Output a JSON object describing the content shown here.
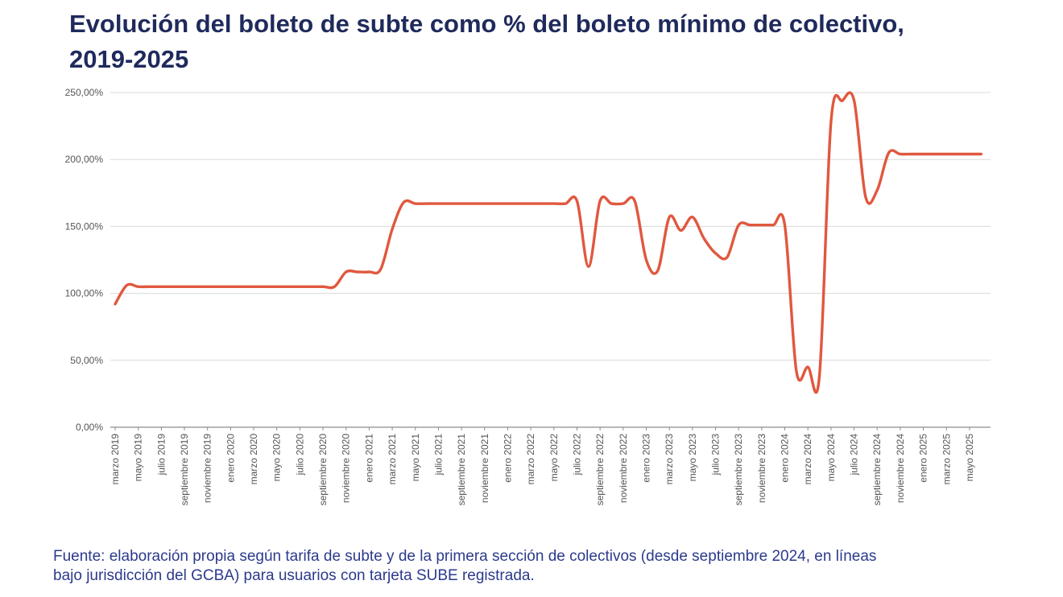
{
  "header": {
    "title_line1": "Evolución del boleto de subte como % del boleto mínimo de colectivo,",
    "title_line2": "2019-2025"
  },
  "footer": {
    "source_line1": "Fuente: elaboración propia según tarifa de subte y de la primera sección de colectivos (desde septiembre 2024, en líneas",
    "source_line2": "bajo jurisdicción del GCBA) para usuarios con tarjeta SUBE registrada."
  },
  "colors": {
    "line": "#e0583f",
    "grid": "#d9d9d9",
    "axis": "#8c8c8c",
    "title": "#1f2a5c",
    "source": "#2c3a8c"
  },
  "chart_data": {
    "type": "line",
    "title": "Evolución del boleto de subte como % del boleto mínimo de colectivo, 2019-2025",
    "xlabel": "",
    "ylabel": "",
    "ylim": [
      0,
      250
    ],
    "yticks": [
      "0,00%",
      "50,00%",
      "100,00%",
      "150,00%",
      "200,00%",
      "250,00%"
    ],
    "grid": true,
    "legend": "none",
    "xtick_labels": [
      "marzo 2019",
      "mayo 2019",
      "julio 2019",
      "septiembre 2019",
      "noviembre 2019",
      "enero 2020",
      "marzo 2020",
      "mayo 2020",
      "julio 2020",
      "septiembre 2020",
      "noviembre 2020",
      "enero 2021",
      "marzo 2021",
      "mayo 2021",
      "julio 2021",
      "septiembre 2021",
      "noviembre 2021",
      "enero 2022",
      "marzo 2022",
      "mayo 2022",
      "julio 2022",
      "septiembre 2022",
      "noviembre 2022",
      "enero 2023",
      "marzo 2023",
      "mayo 2023",
      "julio 2023",
      "septiembre 2023",
      "noviembre 2023",
      "enero 2024",
      "marzo 2024",
      "mayo 2024",
      "julio 2024",
      "septiembre 2024",
      "noviembre 2024",
      "enero 2025",
      "marzo 2025",
      "mayo 2025"
    ],
    "series": [
      {
        "x": [
          "2019-03",
          "2019-04",
          "2019-05",
          "2019-06",
          "2019-07",
          "2019-08",
          "2019-09",
          "2019-10",
          "2019-11",
          "2019-12",
          "2020-01",
          "2020-02",
          "2020-03",
          "2020-04",
          "2020-05",
          "2020-06",
          "2020-07",
          "2020-08",
          "2020-09",
          "2020-10",
          "2020-11",
          "2020-12",
          "2021-01",
          "2021-02",
          "2021-03",
          "2021-04",
          "2021-05",
          "2021-06",
          "2021-07",
          "2021-08",
          "2021-09",
          "2021-10",
          "2021-11",
          "2021-12",
          "2022-01",
          "2022-02",
          "2022-03",
          "2022-04",
          "2022-05",
          "2022-06",
          "2022-07",
          "2022-08",
          "2022-09",
          "2022-10",
          "2022-11",
          "2022-12",
          "2023-01",
          "2023-02",
          "2023-03",
          "2023-04",
          "2023-05",
          "2023-06",
          "2023-07",
          "2023-08",
          "2023-09",
          "2023-10",
          "2023-11",
          "2023-12",
          "2024-01",
          "2024-02",
          "2024-03",
          "2024-04",
          "2024-05",
          "2024-06",
          "2024-07",
          "2024-08",
          "2024-09",
          "2024-10",
          "2024-11",
          "2024-12",
          "2025-01",
          "2025-02",
          "2025-03",
          "2025-04",
          "2025-05",
          "2025-06"
        ],
        "values": [
          92,
          106,
          105,
          105,
          105,
          105,
          105,
          105,
          105,
          105,
          105,
          105,
          105,
          105,
          105,
          105,
          105,
          105,
          105,
          105,
          116,
          116,
          116,
          118,
          148,
          168,
          167,
          167,
          167,
          167,
          167,
          167,
          167,
          167,
          167,
          167,
          167,
          167,
          167,
          167,
          169,
          120,
          169,
          167,
          167,
          169,
          125,
          117,
          157,
          147,
          157,
          141,
          130,
          127,
          151,
          151,
          151,
          151,
          151,
          42,
          45,
          38,
          228,
          244,
          244,
          172,
          177,
          205,
          204,
          204,
          204,
          204,
          204,
          204,
          204,
          204
        ]
      }
    ]
  }
}
